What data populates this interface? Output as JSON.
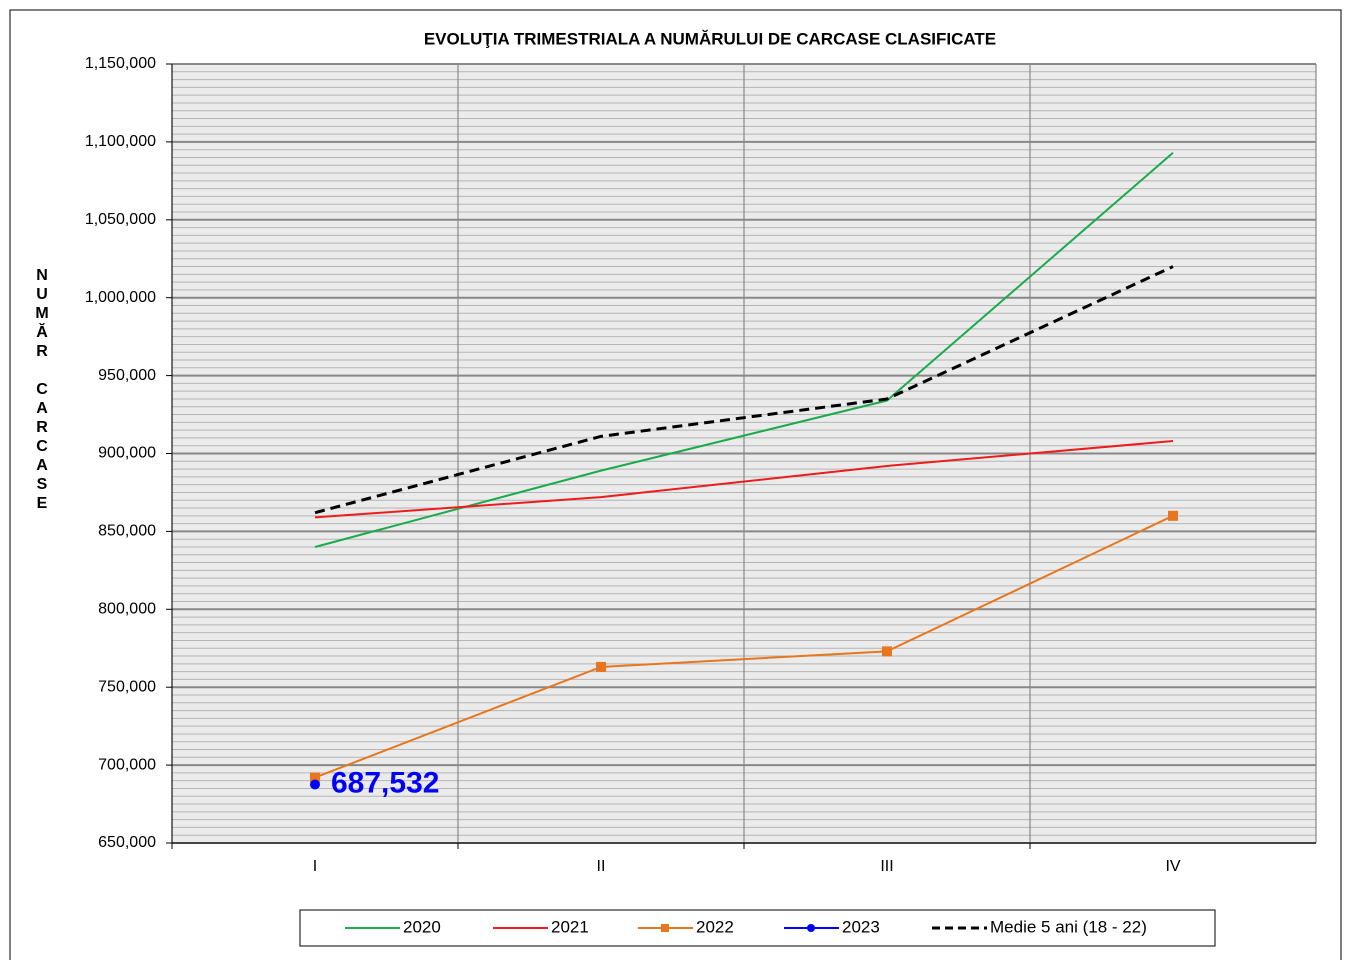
{
  "chart_data": {
    "type": "line",
    "title": "EVOLUŢIA  TRIMESTRIALA  A NUMĂRULUI DE CARCASE  CLASIFICATE",
    "y_label": "NUMĂR CARCASE",
    "categories": [
      "I",
      "II",
      "III",
      "IV"
    ],
    "series": [
      {
        "name": "2020",
        "color": "#1aab4b",
        "values": [
          840000,
          889000,
          934000,
          1093000
        ]
      },
      {
        "name": "2021",
        "color": "#ee1c1c",
        "values": [
          859000,
          872000,
          892000,
          908000
        ]
      },
      {
        "name": "2022",
        "color": "#e8761e",
        "marker": "square",
        "values": [
          692000,
          763000,
          773000,
          860000
        ]
      },
      {
        "name": "2023",
        "color": "#0000ff",
        "marker": "circle",
        "values": [
          687532,
          null,
          null,
          null
        ],
        "value_labels": [
          "687,532",
          null,
          null,
          null
        ]
      },
      {
        "name": "Medie 5 ani (18 - 22)",
        "color": "#000000",
        "dash": true,
        "values": [
          862000,
          911000,
          935000,
          1020000
        ]
      }
    ],
    "ylim": [
      650000,
      1150000
    ],
    "yticks": [
      {
        "value": 650000,
        "label": "650,000"
      },
      {
        "value": 700000,
        "label": "700,000"
      },
      {
        "value": 750000,
        "label": "750,000"
      },
      {
        "value": 800000,
        "label": "800,000"
      },
      {
        "value": 850000,
        "label": "850,000"
      },
      {
        "value": 900000,
        "label": "900,000"
      },
      {
        "value": 950000,
        "label": "950,000"
      },
      {
        "value": 1000000,
        "label": "1,000,000"
      },
      {
        "value": 1050000,
        "label": "1,050,000"
      },
      {
        "value": 1100000,
        "label": "1,100,000"
      },
      {
        "value": 1150000,
        "label": "1,150,000"
      }
    ],
    "grid": true,
    "legend": "bottom"
  }
}
